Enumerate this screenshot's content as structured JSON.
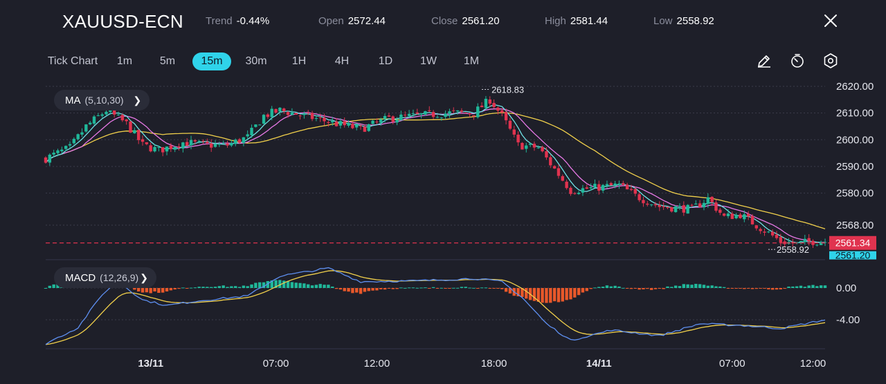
{
  "header": {
    "symbol": "XAUUSD-ECN",
    "trend_label": "Trend",
    "trend_value": "-0.44%",
    "open_label": "Open",
    "open_value": "2572.44",
    "close_label": "Close",
    "close_value": "2561.20",
    "high_label": "High",
    "high_value": "2581.44",
    "low_label": "Low",
    "low_value": "2558.92"
  },
  "timeframes": [
    {
      "label": "Tick Chart",
      "active": false
    },
    {
      "label": "1m",
      "active": false
    },
    {
      "label": "5m",
      "active": false
    },
    {
      "label": "15m",
      "active": true
    },
    {
      "label": "30m",
      "active": false
    },
    {
      "label": "1H",
      "active": false
    },
    {
      "label": "4H",
      "active": false
    },
    {
      "label": "1D",
      "active": false
    },
    {
      "label": "1W",
      "active": false
    },
    {
      "label": "1M",
      "active": false
    }
  ],
  "tools": [
    "pencil-icon",
    "timer-icon",
    "settings-icon"
  ],
  "indicators": {
    "ma_name": "MA",
    "ma_params": "(5,10,30)",
    "macd_name": "MACD",
    "macd_params": "(12,26,9)"
  },
  "colors": {
    "up": "#20b89a",
    "down": "#e0334f",
    "ma5": "#6fe3e6",
    "ma10": "#e879e6",
    "ma30": "#f1d04b",
    "macd_line": "#5e8ff0",
    "signal_line": "#f1d04b",
    "hist_pos": "#20b89a",
    "hist_neg": "#e8582a",
    "bid_tag": "#e0334f",
    "ask_tag": "#2fd3ea",
    "active_tf": "#2fd3ea"
  },
  "chart_data": {
    "type": "candlestick",
    "price_axis_ticks": [
      "2620.00",
      "2610.00",
      "2600.00",
      "2590.00",
      "2580.00",
      "2568.00"
    ],
    "ylim": [
      2556,
      2622
    ],
    "time_axis_ticks": [
      "13/11",
      "07:00",
      "12:00",
      "18:00",
      "14/11",
      "07:00",
      "12:00"
    ],
    "current_bid": "2561.34",
    "current_ask": "2561.20",
    "high_marker": "2618.83",
    "low_marker": "2558.92",
    "price_keypoints": [
      [
        0,
        2593
      ],
      [
        6,
        2597
      ],
      [
        10,
        2605
      ],
      [
        15,
        2611
      ],
      [
        20,
        2606
      ],
      [
        24,
        2598
      ],
      [
        28,
        2596
      ],
      [
        34,
        2599
      ],
      [
        40,
        2598
      ],
      [
        45,
        2598
      ],
      [
        50,
        2601
      ],
      [
        54,
        2609
      ],
      [
        58,
        2611
      ],
      [
        64,
        2609
      ],
      [
        72,
        2606
      ],
      [
        78,
        2604
      ],
      [
        85,
        2608
      ],
      [
        92,
        2609
      ],
      [
        100,
        2610
      ],
      [
        106,
        2610
      ],
      [
        110,
        2615
      ],
      [
        113,
        2609
      ],
      [
        117,
        2598
      ],
      [
        122,
        2597
      ],
      [
        126,
        2589
      ],
      [
        130,
        2581
      ],
      [
        136,
        2582
      ],
      [
        142,
        2583
      ],
      [
        146,
        2579
      ],
      [
        152,
        2575
      ],
      [
        160,
        2574
      ],
      [
        164,
        2578
      ],
      [
        168,
        2571
      ],
      [
        172,
        2572
      ],
      [
        178,
        2566
      ],
      [
        182,
        2562
      ],
      [
        186,
        2561
      ],
      [
        190,
        2562
      ],
      [
        193,
        2562
      ]
    ],
    "macd_axis_ticks": [
      "0.00",
      "-4.00"
    ],
    "macd_ylim": [
      -7.5,
      2.5
    ],
    "macd_keypoints": [
      [
        0,
        -7.0
      ],
      [
        8,
        -5.0
      ],
      [
        14,
        -0.8
      ],
      [
        18,
        0.8
      ],
      [
        24,
        -1.5
      ],
      [
        30,
        -2.2
      ],
      [
        38,
        -1.6
      ],
      [
        50,
        -1.0
      ],
      [
        58,
        1.5
      ],
      [
        70,
        2.5
      ],
      [
        78,
        0.8
      ],
      [
        92,
        0.9
      ],
      [
        106,
        1.2
      ],
      [
        113,
        0.8
      ],
      [
        118,
        -1.2
      ],
      [
        124,
        -4.5
      ],
      [
        130,
        -6.6
      ],
      [
        140,
        -5.3
      ],
      [
        152,
        -6.0
      ],
      [
        162,
        -4.5
      ],
      [
        172,
        -4.7
      ],
      [
        182,
        -5.1
      ],
      [
        193,
        -4.0
      ]
    ],
    "candle_count": 194
  }
}
